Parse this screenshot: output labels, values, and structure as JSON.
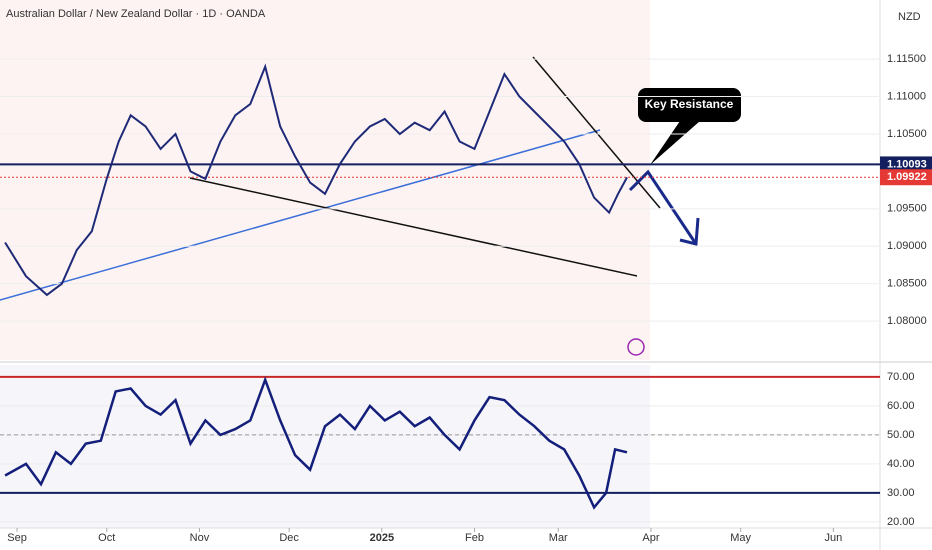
{
  "chart_data": [
    {
      "type": "line",
      "title": "Australian Dollar / New Zealand Dollar · 1D · OANDA",
      "currency": "NZD",
      "x": [
        -4,
        3,
        10,
        15,
        20,
        25,
        30,
        34,
        38,
        43,
        48,
        53,
        58,
        63,
        68,
        73,
        78,
        83,
        88,
        93,
        98,
        103,
        108,
        113,
        118,
        123,
        128,
        133,
        138,
        143,
        148,
        153,
        158,
        163,
        168,
        173,
        178,
        183,
        188,
        193,
        198,
        201,
        204
      ],
      "series": [
        {
          "color": "#1e2a78",
          "values": [
            1.0905,
            1.086,
            1.0835,
            1.085,
            1.0895,
            1.092,
            1.099,
            1.104,
            1.1075,
            1.106,
            1.103,
            1.105,
            1.1,
            1.099,
            1.104,
            1.1075,
            1.109,
            1.114,
            1.106,
            1.102,
            1.0985,
            1.097,
            1.101,
            1.104,
            1.106,
            1.107,
            1.105,
            1.1065,
            1.1055,
            1.108,
            1.104,
            1.103,
            1.108,
            1.113,
            1.11,
            1.108,
            1.106,
            1.104,
            1.101,
            1.0965,
            1.0945,
            1.097,
            1.0992
          ]
        }
      ],
      "xlim": [
        -5.7,
        288.6
      ],
      "ylim": [
        1.0748,
        1.1229
      ],
      "yticks": [
        {
          "value": 1.08,
          "label": "1.08000"
        },
        {
          "value": 1.085,
          "label": "1.08500"
        },
        {
          "value": 1.09,
          "label": "1.09000"
        },
        {
          "value": 1.095,
          "label": "1.09500"
        },
        {
          "value": 1.105,
          "label": "1.10500"
        },
        {
          "value": 1.11,
          "label": "1.11000"
        },
        {
          "value": 1.115,
          "label": "1.11500"
        }
      ],
      "price_levels": [
        1.10093,
        1.09922
      ],
      "price_level_colors": [
        "#131f5e",
        "#e53935"
      ],
      "annotations": [
        {
          "text": "Key Resistance"
        }
      ]
    },
    {
      "type": "line",
      "x": [
        -4,
        3,
        8,
        13,
        18,
        23,
        28,
        33,
        38,
        43,
        48,
        53,
        58,
        63,
        68,
        73,
        78,
        83,
        88,
        93,
        98,
        103,
        108,
        113,
        118,
        123,
        128,
        133,
        138,
        143,
        148,
        153,
        158,
        163,
        168,
        173,
        178,
        183,
        188,
        193,
        197,
        200,
        204
      ],
      "series": [
        {
          "color": "#131f7a",
          "values": [
            36,
            40,
            33,
            44,
            40,
            47,
            48,
            65,
            66,
            60,
            57,
            62,
            47,
            55,
            50,
            52,
            55,
            69,
            55,
            43,
            38,
            53,
            57,
            52,
            60,
            55,
            58,
            53,
            56,
            50,
            45,
            55,
            63,
            62,
            57,
            53,
            48,
            45,
            36,
            25,
            30,
            45,
            44
          ]
        }
      ],
      "xlim": [
        -5.7,
        288.6
      ],
      "ylim": [
        17.9,
        74.1
      ],
      "yticks": [
        {
          "value": 20,
          "label": "20.00"
        },
        {
          "value": 30,
          "label": "30.00"
        },
        {
          "value": 40,
          "label": "40.00"
        },
        {
          "value": 50,
          "label": "50.00"
        },
        {
          "value": 60,
          "label": "60.00"
        },
        {
          "value": 70,
          "label": "70.00"
        }
      ],
      "levels": [
        70,
        50,
        30
      ],
      "level_colors": [
        "#c62828",
        "#999999",
        "#131f5e"
      ],
      "xticks": [
        {
          "value": 0,
          "label": "Sep"
        },
        {
          "value": 30,
          "label": "Oct"
        },
        {
          "value": 61,
          "label": "Nov"
        },
        {
          "value": 91,
          "label": "Dec"
        },
        {
          "value": 122,
          "label": "2025"
        },
        {
          "value": 153,
          "label": "Feb"
        },
        {
          "value": 181,
          "label": "Mar"
        },
        {
          "value": 212,
          "label": "Apr"
        },
        {
          "value": 242,
          "label": "May"
        },
        {
          "value": 273,
          "label": "Jun"
        }
      ]
    }
  ]
}
